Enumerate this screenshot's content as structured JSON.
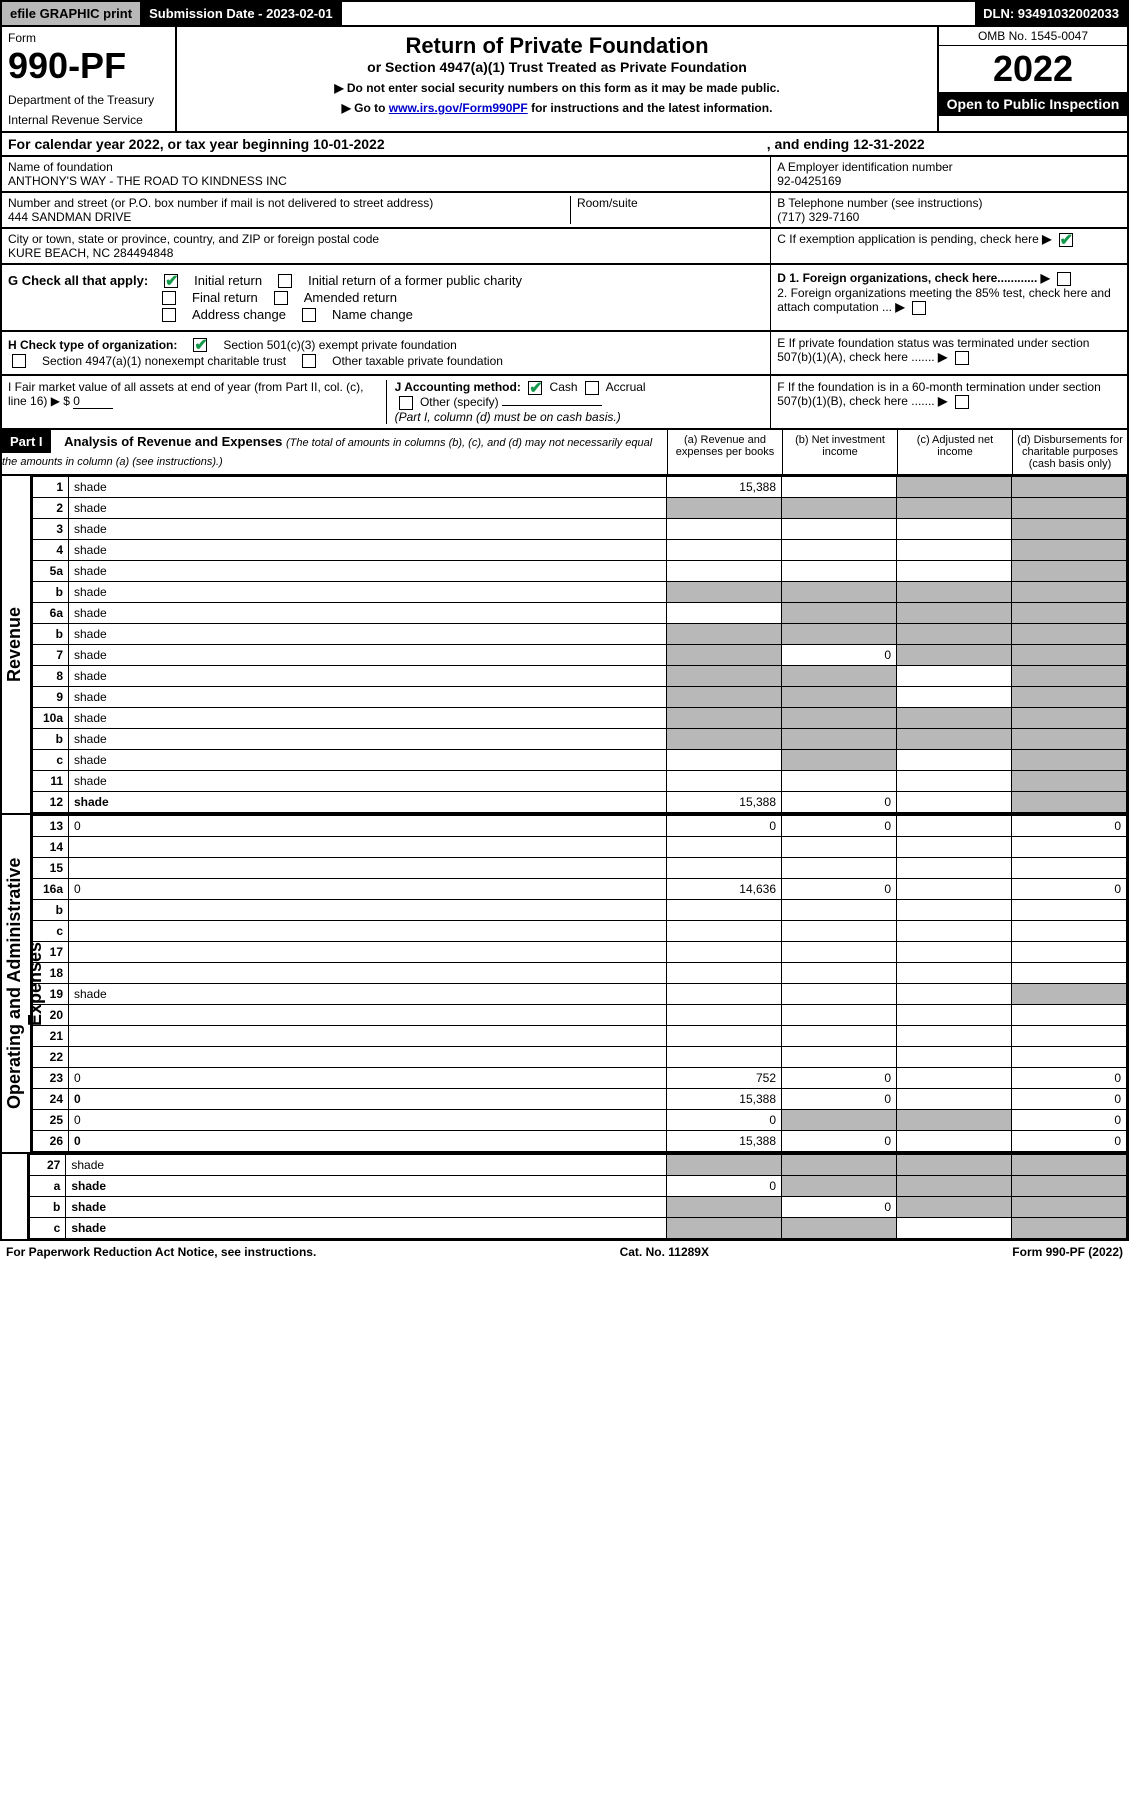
{
  "topbar": {
    "efile": "efile GRAPHIC print",
    "subdate": "Submission Date - 2023-02-01",
    "dln": "DLN: 93491032002033"
  },
  "header": {
    "form_label": "Form",
    "form_no": "990-PF",
    "dept": "Department of the Treasury",
    "irs": "Internal Revenue Service",
    "title": "Return of Private Foundation",
    "subtitle": "or Section 4947(a)(1) Trust Treated as Private Foundation",
    "instr1": "▶ Do not enter social security numbers on this form as it may be made public.",
    "instr2_pre": "▶ Go to ",
    "instr2_link": "www.irs.gov/Form990PF",
    "instr2_post": " for instructions and the latest information.",
    "omb": "OMB No. 1545-0047",
    "year": "2022",
    "inspection": "Open to Public Inspection"
  },
  "cal_year": {
    "text": "For calendar year 2022, or tax year beginning 10-01-2022",
    "ending_label": ", and ending 12-31-2022"
  },
  "identity": {
    "name_label": "Name of foundation",
    "name": "ANTHONY'S WAY - THE ROAD TO KINDNESS INC",
    "ein_label": "A Employer identification number",
    "ein": "92-0425169",
    "addr_label": "Number and street (or P.O. box number if mail is not delivered to street address)",
    "addr": "444 SANDMAN DRIVE",
    "room_label": "Room/suite",
    "phone_label": "B Telephone number (see instructions)",
    "phone": "(717) 329-7160",
    "city_label": "City or town, state or province, country, and ZIP or foreign postal code",
    "city": "KURE BEACH, NC  284494848",
    "c_label": "C If exemption application is pending, check here"
  },
  "g_section": {
    "label": "G Check all that apply:",
    "initial": "Initial return",
    "initial_former": "Initial return of a former public charity",
    "final": "Final return",
    "amended": "Amended return",
    "addr_change": "Address change",
    "name_change": "Name change"
  },
  "d_section": {
    "d1": "D 1. Foreign organizations, check here............",
    "d2": "2. Foreign organizations meeting the 85% test, check here and attach computation ...",
    "e": "E  If private foundation status was terminated under section 507(b)(1)(A), check here .......",
    "f": "F  If the foundation is in a 60-month termination under section 507(b)(1)(B), check here ......."
  },
  "h_section": {
    "label": "H Check type of organization:",
    "opt1": "Section 501(c)(3) exempt private foundation",
    "opt2": "Section 4947(a)(1) nonexempt charitable trust",
    "opt3": "Other taxable private foundation"
  },
  "i_section": {
    "label": "I Fair market value of all assets at end of year (from Part II, col. (c), line 16) ▶ $",
    "value": "0"
  },
  "j_section": {
    "label": "J Accounting method:",
    "cash": "Cash",
    "accrual": "Accrual",
    "other": "Other (specify)",
    "note": "(Part I, column (d) must be on cash basis.)"
  },
  "part1": {
    "header": "Part I",
    "title": "Analysis of Revenue and Expenses",
    "title_note": "(The total of amounts in columns (b), (c), and (d) may not necessarily equal the amounts in column (a) (see instructions).)",
    "col_a": "(a)   Revenue and expenses per books",
    "col_b": "(b)   Net investment income",
    "col_c": "(c)   Adjusted net income",
    "col_d": "(d)   Disbursements for charitable purposes (cash basis only)"
  },
  "side_labels": {
    "revenue": "Revenue",
    "expenses": "Operating and Administrative Expenses"
  },
  "lines": [
    {
      "n": "1",
      "d": "shade",
      "a": "15,388",
      "b": "",
      "c": "shade"
    },
    {
      "n": "2",
      "d": "shade",
      "a": "shade",
      "b": "shade",
      "c": "shade"
    },
    {
      "n": "3",
      "d": "shade",
      "a": "",
      "b": "",
      "c": ""
    },
    {
      "n": "4",
      "d": "shade",
      "a": "",
      "b": "",
      "c": ""
    },
    {
      "n": "5a",
      "d": "shade",
      "a": "",
      "b": "",
      "c": ""
    },
    {
      "n": "b",
      "d": "shade",
      "a": "shade",
      "b": "shade",
      "c": "shade"
    },
    {
      "n": "6a",
      "d": "shade",
      "a": "",
      "b": "shade",
      "c": "shade"
    },
    {
      "n": "b",
      "d": "shade",
      "a": "shade",
      "b": "shade",
      "c": "shade"
    },
    {
      "n": "7",
      "d": "shade",
      "a": "shade",
      "b": "0",
      "c": "shade"
    },
    {
      "n": "8",
      "d": "shade",
      "a": "shade",
      "b": "shade",
      "c": ""
    },
    {
      "n": "9",
      "d": "shade",
      "a": "shade",
      "b": "shade",
      "c": ""
    },
    {
      "n": "10a",
      "d": "shade",
      "a": "shade",
      "b": "shade",
      "c": "shade"
    },
    {
      "n": "b",
      "d": "shade",
      "a": "shade",
      "b": "shade",
      "c": "shade"
    },
    {
      "n": "c",
      "d": "shade",
      "a": "",
      "b": "shade",
      "c": ""
    },
    {
      "n": "11",
      "d": "shade",
      "a": "",
      "b": "",
      "c": ""
    },
    {
      "n": "12",
      "d": "shade",
      "a": "15,388",
      "b": "0",
      "c": "",
      "bold": true
    }
  ],
  "exp_lines": [
    {
      "n": "13",
      "d": "0",
      "a": "0",
      "b": "0",
      "c": ""
    },
    {
      "n": "14",
      "d": "",
      "a": "",
      "b": "",
      "c": ""
    },
    {
      "n": "15",
      "d": "",
      "a": "",
      "b": "",
      "c": ""
    },
    {
      "n": "16a",
      "d": "0",
      "a": "14,636",
      "b": "0",
      "c": ""
    },
    {
      "n": "b",
      "d": "",
      "a": "",
      "b": "",
      "c": ""
    },
    {
      "n": "c",
      "d": "",
      "a": "",
      "b": "",
      "c": ""
    },
    {
      "n": "17",
      "d": "",
      "a": "",
      "b": "",
      "c": ""
    },
    {
      "n": "18",
      "d": "",
      "a": "",
      "b": "",
      "c": ""
    },
    {
      "n": "19",
      "d": "shade",
      "a": "",
      "b": "",
      "c": ""
    },
    {
      "n": "20",
      "d": "",
      "a": "",
      "b": "",
      "c": ""
    },
    {
      "n": "21",
      "d": "",
      "a": "",
      "b": "",
      "c": ""
    },
    {
      "n": "22",
      "d": "",
      "a": "",
      "b": "",
      "c": ""
    },
    {
      "n": "23",
      "d": "0",
      "a": "752",
      "b": "0",
      "c": ""
    },
    {
      "n": "24",
      "d": "0",
      "a": "15,388",
      "b": "0",
      "c": "",
      "bold": true
    },
    {
      "n": "25",
      "d": "0",
      "a": "0",
      "b": "shade",
      "c": "shade"
    },
    {
      "n": "26",
      "d": "0",
      "a": "15,388",
      "b": "0",
      "c": "",
      "bold": true
    }
  ],
  "bottom_lines": [
    {
      "n": "27",
      "d": "shade",
      "a": "shade",
      "b": "shade",
      "c": "shade"
    },
    {
      "n": "a",
      "d": "shade",
      "a": "0",
      "b": "shade",
      "c": "shade",
      "bold": true
    },
    {
      "n": "b",
      "d": "shade",
      "a": "shade",
      "b": "0",
      "c": "shade",
      "bold": true
    },
    {
      "n": "c",
      "d": "shade",
      "a": "shade",
      "b": "shade",
      "c": "",
      "bold": true
    }
  ],
  "footer": {
    "left": "For Paperwork Reduction Act Notice, see instructions.",
    "mid": "Cat. No. 11289X",
    "right": "Form 990-PF (2022)"
  },
  "colors": {
    "shade": "#b8b8b8",
    "black": "#000000",
    "link": "#0000cc",
    "check": "#149a4a"
  }
}
